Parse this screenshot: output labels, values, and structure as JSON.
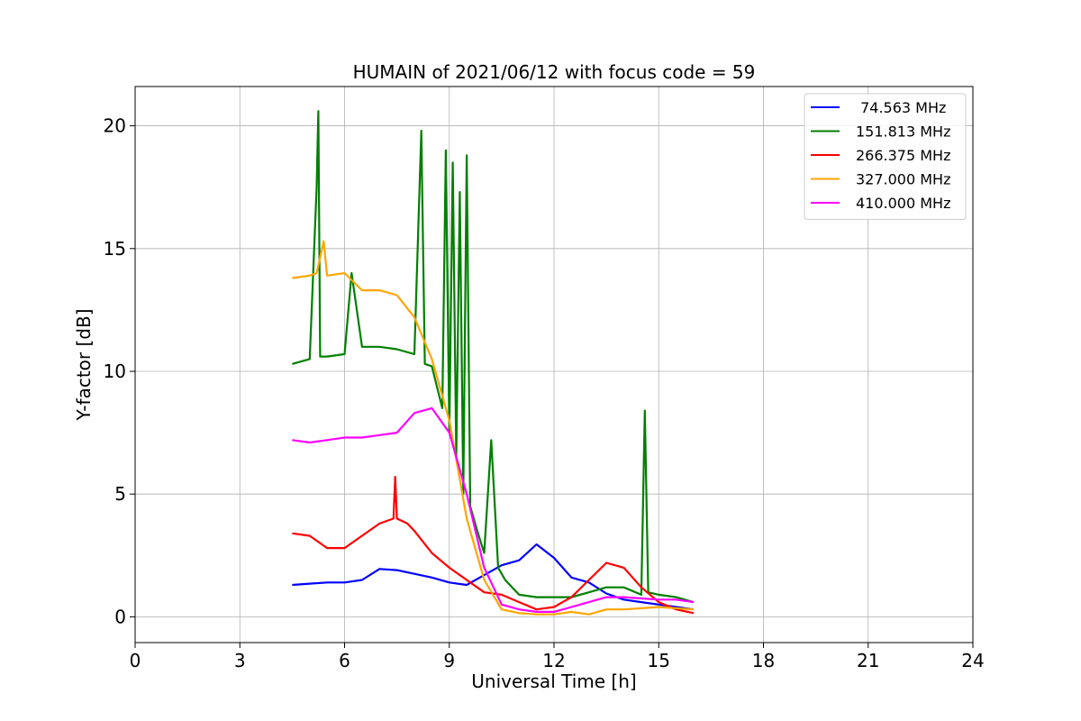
{
  "chart_data": {
    "type": "line",
    "title": "HUMAIN of 2021/06/12 with focus code = 59",
    "xlabel": "Universal Time [h]",
    "ylabel": "Y-factor [dB]",
    "xlim": [
      0,
      24
    ],
    "ylim": [
      -1.05,
      21.6
    ],
    "xticks": [
      0,
      3,
      6,
      9,
      12,
      15,
      18,
      21,
      24
    ],
    "yticks": [
      0,
      5,
      10,
      15,
      20
    ],
    "grid": true,
    "legend_position": "top-right",
    "series": [
      {
        "name": " 74.563 MHz",
        "color": "#0000ff",
        "x": [
          4.5,
          5.0,
          5.5,
          6.0,
          6.5,
          7.0,
          7.5,
          8.0,
          8.5,
          9.0,
          9.5,
          10.0,
          10.5,
          11.0,
          11.5,
          12.0,
          12.5,
          13.0,
          13.5,
          14.0,
          14.5,
          15.0,
          15.5,
          16.0
        ],
        "y": [
          1.3,
          1.35,
          1.4,
          1.4,
          1.5,
          1.95,
          1.9,
          1.75,
          1.6,
          1.4,
          1.3,
          1.7,
          2.1,
          2.3,
          2.95,
          2.4,
          1.6,
          1.4,
          0.95,
          0.7,
          0.6,
          0.5,
          0.4,
          0.3
        ]
      },
      {
        "name": "151.813 MHz",
        "color": "#008000",
        "x": [
          4.5,
          5.0,
          5.2,
          5.25,
          5.3,
          5.5,
          6.0,
          6.2,
          6.5,
          7.0,
          7.5,
          8.0,
          8.2,
          8.3,
          8.5,
          8.8,
          8.9,
          9.0,
          9.1,
          9.2,
          9.3,
          9.4,
          9.5,
          9.6,
          9.8,
          10.0,
          10.2,
          10.4,
          10.6,
          10.8,
          11.0,
          11.5,
          12.0,
          12.5,
          13.0,
          13.5,
          14.0,
          14.5,
          14.6,
          14.7,
          15.0,
          15.5,
          16.0
        ],
        "y": [
          10.3,
          10.5,
          17.5,
          20.6,
          10.6,
          10.6,
          10.7,
          14.0,
          11.0,
          11.0,
          10.9,
          10.7,
          19.8,
          10.3,
          10.2,
          8.5,
          19.0,
          7.5,
          18.5,
          6.5,
          17.3,
          5.0,
          18.8,
          4.5,
          3.5,
          2.6,
          7.2,
          2.0,
          1.5,
          1.2,
          0.9,
          0.8,
          0.8,
          0.8,
          1.0,
          1.2,
          1.2,
          0.9,
          8.4,
          1.0,
          0.9,
          0.8,
          0.6
        ]
      },
      {
        "name": "266.375 MHz",
        "color": "#ff0000",
        "x": [
          4.5,
          5.0,
          5.5,
          6.0,
          6.5,
          7.0,
          7.4,
          7.45,
          7.5,
          7.8,
          8.0,
          8.5,
          9.0,
          9.5,
          10.0,
          10.5,
          11.0,
          11.5,
          12.0,
          12.5,
          13.0,
          13.5,
          14.0,
          14.5,
          15.0,
          15.5,
          16.0
        ],
        "y": [
          3.4,
          3.3,
          2.8,
          2.8,
          3.3,
          3.8,
          4.0,
          5.7,
          4.0,
          3.8,
          3.5,
          2.6,
          2.0,
          1.5,
          1.0,
          0.9,
          0.6,
          0.3,
          0.4,
          0.8,
          1.5,
          2.2,
          2.0,
          1.2,
          0.6,
          0.3,
          0.15
        ]
      },
      {
        "name": "327.000 MHz",
        "color": "#ffa500",
        "x": [
          4.5,
          5.0,
          5.2,
          5.4,
          5.5,
          6.0,
          6.5,
          7.0,
          7.5,
          8.0,
          8.5,
          9.0,
          9.5,
          10.0,
          10.5,
          11.0,
          11.5,
          12.0,
          12.5,
          13.0,
          13.5,
          14.0,
          14.5,
          15.0,
          15.5,
          16.0
        ],
        "y": [
          13.8,
          13.9,
          14.0,
          15.3,
          13.9,
          14.0,
          13.3,
          13.3,
          13.1,
          12.2,
          10.5,
          8.0,
          4.0,
          1.5,
          0.3,
          0.15,
          0.1,
          0.1,
          0.2,
          0.1,
          0.3,
          0.3,
          0.35,
          0.4,
          0.35,
          0.3
        ]
      },
      {
        "name": "410.000 MHz",
        "color": "#ff00ff",
        "x": [
          4.5,
          5.0,
          5.5,
          6.0,
          6.5,
          7.0,
          7.5,
          8.0,
          8.5,
          9.0,
          9.5,
          10.0,
          10.5,
          11.0,
          11.5,
          12.0,
          12.5,
          13.0,
          13.5,
          14.0,
          14.5,
          15.0,
          15.5,
          16.0
        ],
        "y": [
          7.2,
          7.1,
          7.2,
          7.3,
          7.3,
          7.4,
          7.5,
          8.3,
          8.5,
          7.5,
          5.0,
          2.0,
          0.5,
          0.3,
          0.2,
          0.2,
          0.4,
          0.6,
          0.8,
          0.8,
          0.75,
          0.7,
          0.7,
          0.6
        ]
      }
    ]
  }
}
